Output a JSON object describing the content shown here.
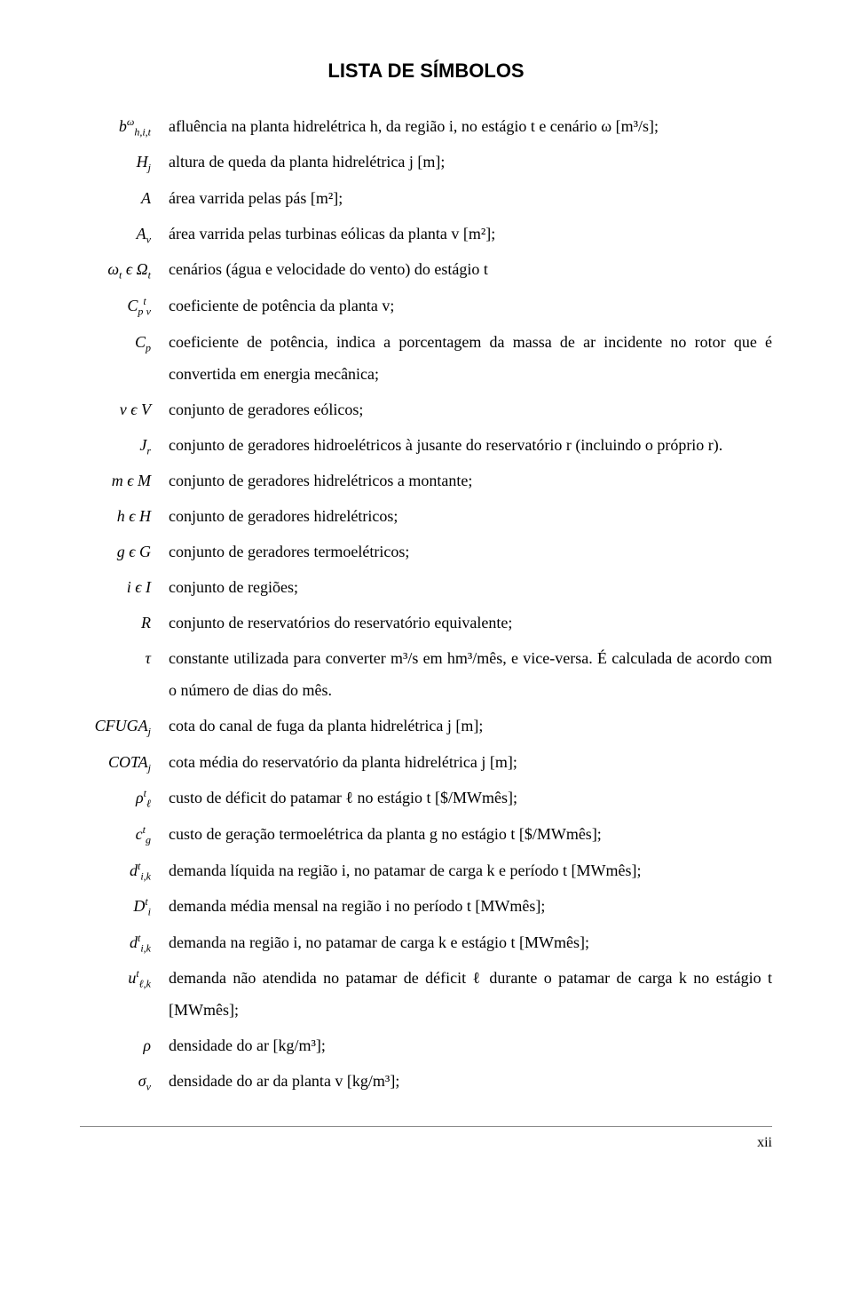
{
  "title": "LISTA DE SÍMBOLOS",
  "page_number": "xii",
  "symbols": [
    {
      "sym_html": "b<span class='sup'>ω</span><span class='sub'>h,i,t</span>",
      "desc": "afluência na planta hidrelétrica h, da região i, no estágio t e cenário ω [m³/s];"
    },
    {
      "sym_html": "H<span class='sub'>j</span>",
      "desc": "altura de queda da planta hidrelétrica j [m];"
    },
    {
      "sym_html": "A",
      "desc": "área varrida pelas pás [m²];"
    },
    {
      "sym_html": "A<span class='sub'>v</span>",
      "desc": "área varrida pelas turbinas eólicas da planta v [m²];"
    },
    {
      "sym_html": "ω<span class='sub'>t</span> ϵ Ω<span class='sub'>t</span>",
      "desc": "cenários (água e velocidade do vento) do estágio t"
    },
    {
      "sym_html": "C<span class='sub'>p</span><span class='sup'>t</span><span class='sub'>v</span>",
      "desc": "coeficiente de potência da planta v;"
    },
    {
      "sym_html": "C<span class='sub'>p</span>",
      "desc": "coeficiente de potência, indica a porcentagem da massa de ar incidente no rotor que é convertida em energia mecânica;"
    },
    {
      "sym_html": "v ϵ V",
      "desc": "conjunto de geradores eólicos;"
    },
    {
      "sym_html": "J<span class='sub'>r</span>",
      "desc": "conjunto de geradores hidroelétricos à jusante do reservatório r (incluindo o próprio r)."
    },
    {
      "sym_html": "m ϵ M",
      "desc": "conjunto de geradores hidrelétricos a montante;"
    },
    {
      "sym_html": "h ϵ H",
      "desc": "conjunto de geradores hidrelétricos;"
    },
    {
      "sym_html": "g ϵ G",
      "desc": "conjunto de geradores termoelétricos;"
    },
    {
      "sym_html": "i ϵ I",
      "desc": "conjunto de regiões;"
    },
    {
      "sym_html": "R",
      "desc": "conjunto de reservatórios do reservatório equivalente;"
    },
    {
      "sym_html": "τ",
      "desc": "constante utilizada para converter m³/s em hm³/mês, e vice-versa. É calculada de acordo com o número de dias do mês."
    },
    {
      "sym_html": "CFUGA<span class='sub'>j</span>",
      "desc": "cota do canal de fuga da planta hidrelétrica j [m];"
    },
    {
      "sym_html": "COTA<span class='sub'>j</span>",
      "desc": "cota média do reservatório da planta hidrelétrica j [m];"
    },
    {
      "sym_html": "ρ<span class='sup'>t</span><span class='sub'>ℓ</span>",
      "desc": "custo de déficit do patamar ℓ no estágio t [$/MWmês];"
    },
    {
      "sym_html": "c<span class='sup'>t</span><span class='sub'>g</span>",
      "desc": "custo de geração termoelétrica da planta g no estágio t [$/MWmês];"
    },
    {
      "sym_html": "d<span class='sup'>t</span><span class='sub'>i,k</span>",
      "desc": "demanda líquida na região i, no patamar de carga k e período t [MWmês];"
    },
    {
      "sym_html": "D<span class='sup'>t</span><span class='sub'>i</span>",
      "desc": "demanda média mensal na região i no período t [MWmês];"
    },
    {
      "sym_html": "d<span class='sup'>t</span><span class='sub'>i,k</span>",
      "desc": "demanda na região i, no patamar de carga k e estágio t [MWmês];"
    },
    {
      "sym_html": "u<span class='sup'>t</span><span class='sub'>ℓ,k</span>",
      "desc": "demanda não atendida no patamar de déficit ℓ durante o patamar de carga k no estágio t [MWmês];"
    },
    {
      "sym_html": "ρ",
      "desc": "densidade do ar [kg/m³];"
    },
    {
      "sym_html": "σ<span class='sub'>v</span>",
      "desc": "densidade do ar da planta v [kg/m³];"
    }
  ]
}
